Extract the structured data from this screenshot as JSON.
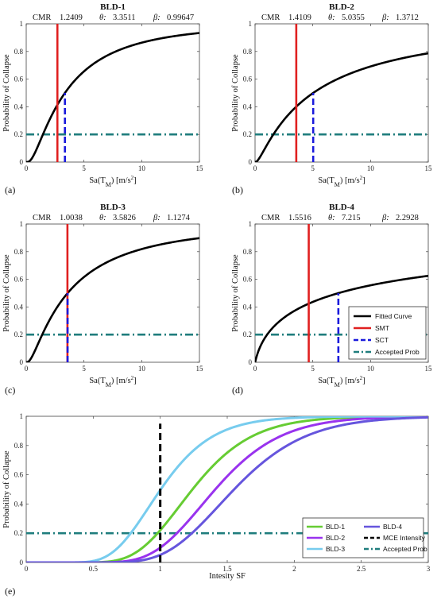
{
  "chart_data": [
    {
      "id": "a",
      "type": "line",
      "title": "BLD-1",
      "panel_label": "(a)",
      "params": {
        "cmr_label": "CMR",
        "cmr": "1.2409",
        "theta_label": "θ:",
        "theta": "3.3511",
        "beta_label": "β:",
        "beta": "0.99647"
      },
      "xlabel": "Sa(T",
      "xlabel_sub": "M",
      "xlabel_unit": ")   [m/s",
      "xlabel_sup": "2",
      "xlabel_end": "]",
      "ylabel": "Probability of Collapse",
      "xlim": [
        0,
        15
      ],
      "ylim": [
        0,
        1
      ],
      "xticks": [
        0,
        5,
        10,
        15
      ],
      "yticks": [
        0,
        0.2,
        0.4,
        0.6,
        0.8,
        1
      ],
      "xtick_labels": [
        "0",
        "5",
        "10",
        "15"
      ],
      "ytick_labels": [
        "0",
        "0.2",
        "0.4",
        "0.6",
        "0.8",
        "1"
      ],
      "median": 3.3511,
      "dispersion": 0.99647,
      "smt": 2.7,
      "sct": 3.3511,
      "accepted_prob": 0.2
    },
    {
      "id": "b",
      "type": "line",
      "title": "BLD-2",
      "panel_label": "(b)",
      "params": {
        "cmr_label": "CMR",
        "cmr": "1.4109",
        "theta_label": "θ:",
        "theta": "5.0355",
        "beta_label": "β:",
        "beta": "1.3712"
      },
      "xlabel": "Sa(T",
      "xlabel_sub": "M",
      "xlabel_unit": ")   [m/s",
      "xlabel_sup": "2",
      "xlabel_end": "]",
      "ylabel": "Probability of Collapse",
      "xlim": [
        0,
        15
      ],
      "ylim": [
        0,
        1
      ],
      "xticks": [
        0,
        5,
        10,
        15
      ],
      "yticks": [
        0,
        0.2,
        0.4,
        0.6,
        0.8,
        1
      ],
      "xtick_labels": [
        "0",
        "5",
        "10",
        "15"
      ],
      "ytick_labels": [
        "0",
        "0.2",
        "0.4",
        "0.6",
        "0.8",
        "1"
      ],
      "median": 5.0355,
      "dispersion": 1.3712,
      "smt": 3.57,
      "sct": 5.0355,
      "accepted_prob": 0.2
    },
    {
      "id": "c",
      "type": "line",
      "title": "BLD-3",
      "panel_label": "(c)",
      "params": {
        "cmr_label": "CMR",
        "cmr": "1.0038",
        "theta_label": "θ:",
        "theta": "3.5826",
        "beta_label": "β:",
        "beta": "1.1274"
      },
      "xlabel": "Sa(T",
      "xlabel_sub": "M",
      "xlabel_unit": ")   [m/s",
      "xlabel_sup": "2",
      "xlabel_end": "]",
      "ylabel": "Probability of Collapse",
      "xlim": [
        0,
        15
      ],
      "ylim": [
        0,
        1
      ],
      "xticks": [
        0,
        5,
        10,
        15
      ],
      "yticks": [
        0,
        0.2,
        0.4,
        0.6,
        0.8,
        1
      ],
      "xtick_labels": [
        "0",
        "5",
        "10",
        "15"
      ],
      "ytick_labels": [
        "0",
        "0.2",
        "0.4",
        "0.6",
        "0.8",
        "1"
      ],
      "median": 3.5826,
      "dispersion": 1.1274,
      "smt": 3.57,
      "sct": 3.5826,
      "accepted_prob": 0.2
    },
    {
      "id": "d",
      "type": "line",
      "title": "BLD-4",
      "panel_label": "(d)",
      "params": {
        "cmr_label": "CMR",
        "cmr": "1.5516",
        "theta_label": "θ:",
        "theta": "7.215",
        "beta_label": "β:",
        "beta": "2.2928"
      },
      "xlabel": "Sa(T",
      "xlabel_sub": "M",
      "xlabel_unit": ")   [m/s",
      "xlabel_sup": "2",
      "xlabel_end": "]",
      "ylabel": "Probability of Collapse",
      "xlim": [
        0,
        15
      ],
      "ylim": [
        0,
        1
      ],
      "xticks": [
        0,
        5,
        10,
        15
      ],
      "yticks": [
        0,
        0.2,
        0.4,
        0.6,
        0.8,
        1
      ],
      "xtick_labels": [
        "0",
        "5",
        "10",
        "15"
      ],
      "ytick_labels": [
        "0",
        "0.2",
        "0.4",
        "0.6",
        "0.8",
        "1"
      ],
      "median": 7.215,
      "dispersion": 2.2928,
      "smt": 4.65,
      "sct": 7.215,
      "accepted_prob": 0.2,
      "legend": {
        "placement": "lower-right",
        "entries": [
          "Fitted Curve",
          "SMT",
          "SCT",
          "Accepted Prob"
        ]
      }
    },
    {
      "id": "e",
      "type": "line",
      "title": "",
      "panel_label": "(e)",
      "xlabel": "Intesity SF",
      "ylabel": "Probability of Collapse",
      "xlim": [
        0,
        3
      ],
      "ylim": [
        0,
        1
      ],
      "xticks": [
        0,
        0.5,
        1,
        1.5,
        2,
        2.5,
        3
      ],
      "yticks": [
        0,
        0.2,
        0.4,
        0.6,
        0.8,
        1
      ],
      "xtick_labels": [
        "0",
        "0.5",
        "1",
        "1.5",
        "2",
        "2.5",
        "3"
      ],
      "ytick_labels": [
        "0",
        "0.2",
        "0.4",
        "0.6",
        "0.8",
        "1"
      ],
      "series": [
        {
          "name": "BLD-1",
          "color": "#66cc33",
          "median": 1.2409,
          "dispersion": 0.28
        },
        {
          "name": "BLD-2",
          "color": "#9933ee",
          "median": 1.4109,
          "dispersion": 0.27
        },
        {
          "name": "BLD-3",
          "color": "#77ccee",
          "median": 1.0038,
          "dispersion": 0.3
        },
        {
          "name": "BLD-4",
          "color": "#6655dd",
          "median": 1.5516,
          "dispersion": 0.27
        }
      ],
      "mce_intensity": 1.0,
      "mce_label": "MCE Intensity",
      "accepted_prob": 0.2,
      "accepted_label": "Accepted Prob",
      "legend": {
        "placement": "lower-right"
      }
    }
  ],
  "colors": {
    "fitted": "#000000",
    "smt": "#e02020",
    "sct": "#1a1adc",
    "accepted": "#1f7d7d",
    "mce": "#000000"
  }
}
